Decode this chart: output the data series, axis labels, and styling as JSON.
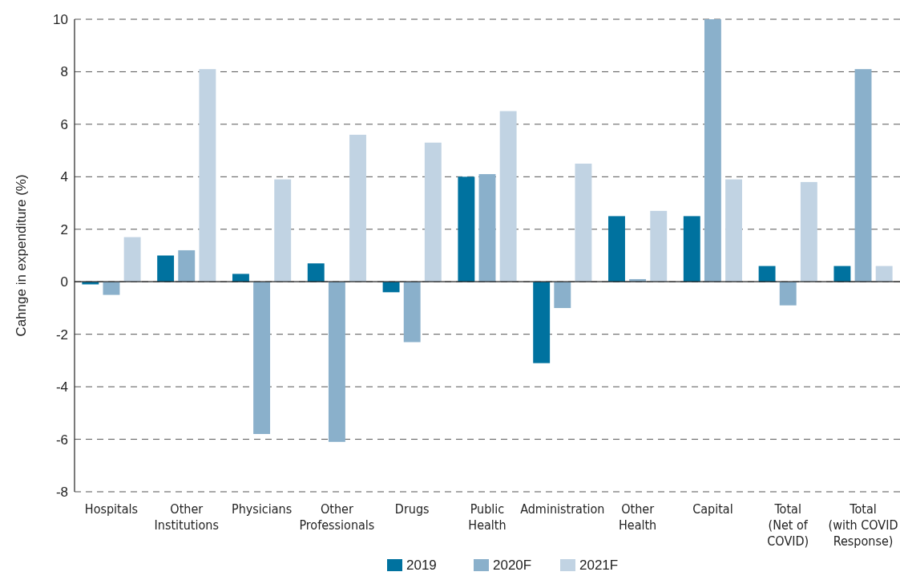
{
  "chart_data": {
    "type": "bar",
    "ylabel": "Cahnge in expenditure (%)",
    "categories": [
      "Hospitals",
      "Other\nInstitutions",
      "Physicians",
      "Other\nProfessionals",
      "Drugs",
      "Public\nHealth",
      "Administration",
      "Other\nHealth",
      "Capital",
      "Total\n(Net of\nCOVID)",
      "Total\n(with COVID\nResponse)"
    ],
    "series": [
      {
        "name": "2019",
        "color": "#00729f",
        "values": [
          -0.1,
          1.0,
          0.3,
          0.7,
          -0.4,
          4.0,
          -3.1,
          2.5,
          2.5,
          0.6,
          0.6
        ]
      },
      {
        "name": "2020F",
        "color": "#8ab0cb",
        "values": [
          -0.5,
          1.2,
          -5.8,
          -6.1,
          -2.3,
          4.1,
          -1.0,
          0.1,
          10.0,
          -0.9,
          8.1
        ]
      },
      {
        "name": "2021F",
        "color": "#c1d3e3",
        "values": [
          1.7,
          8.1,
          3.9,
          5.6,
          5.3,
          6.5,
          4.5,
          2.7,
          3.9,
          3.8,
          0.6
        ]
      }
    ],
    "ylim": [
      -8,
      10
    ],
    "yticks": [
      -8,
      -6,
      -4,
      -2,
      0,
      2,
      4,
      6,
      8,
      10
    ],
    "grid": "y",
    "legend": "bottom"
  }
}
